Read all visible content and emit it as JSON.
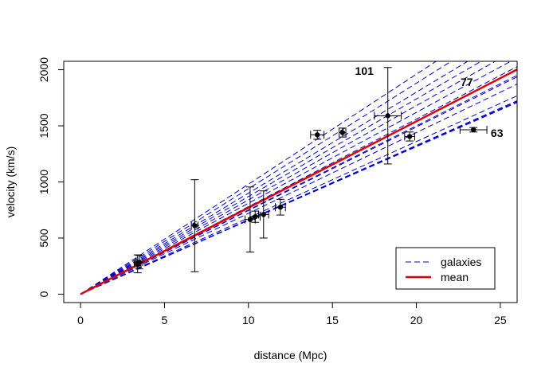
{
  "chart_data": {
    "type": "line",
    "xlabel": "distance (Mpc)",
    "ylabel": "velocity (km/s)",
    "xlim": [
      -1.0,
      26
    ],
    "ylim": [
      -75,
      2075
    ],
    "x_ticks": [
      0,
      5,
      10,
      15,
      20,
      25
    ],
    "y_ticks": [
      0,
      500,
      1000,
      1500,
      2000
    ],
    "grid": false,
    "legend_position": "bottom-right",
    "legend": [
      {
        "label": "galaxies",
        "style": "dashed",
        "color": "#0000cc"
      },
      {
        "label": "mean",
        "style": "solid",
        "color": "#e00000"
      }
    ],
    "galaxy_lines_slopes": [
      65.7,
      66.0,
      66.3,
      68.0,
      72.0,
      74.5,
      75.0,
      78.0,
      81.0,
      84.0,
      87.0,
      90.0,
      94.0,
      98.0
    ],
    "mean_slope": 77.0,
    "points": [
      {
        "x": 3.4,
        "y": 270,
        "xerr": 0.2,
        "yerr": 80
      },
      {
        "x": 3.5,
        "y": 285,
        "xerr": 0.2,
        "yerr": 60
      },
      {
        "x": 6.8,
        "y": 610,
        "xerr": 0.2,
        "yerr": 410
      },
      {
        "x": 10.1,
        "y": 665,
        "xerr": 0.3,
        "yerr": 290
      },
      {
        "x": 10.4,
        "y": 690,
        "xerr": 0.3,
        "yerr": 50
      },
      {
        "x": 10.9,
        "y": 710,
        "xerr": 0.3,
        "yerr": 210
      },
      {
        "x": 11.9,
        "y": 775,
        "xerr": 0.3,
        "yerr": 70
      },
      {
        "x": 14.1,
        "y": 1420,
        "xerr": 0.4,
        "yerr": 40
      },
      {
        "x": 15.6,
        "y": 1440,
        "xerr": 0.2,
        "yerr": 40
      },
      {
        "x": 18.3,
        "y": 1590,
        "xerr": 0.8,
        "yerr": 430
      },
      {
        "x": 19.6,
        "y": 1405,
        "xerr": 0.3,
        "yerr": 40
      },
      {
        "x": 23.4,
        "y": 1465,
        "xerr": 0.8,
        "yerr": 20
      }
    ],
    "annotations": [
      {
        "text": "101",
        "x": 16.9,
        "y": 1990
      },
      {
        "text": "77",
        "x": 23.0,
        "y": 1890
      },
      {
        "text": "63",
        "x": 24.8,
        "y": 1435
      }
    ]
  }
}
